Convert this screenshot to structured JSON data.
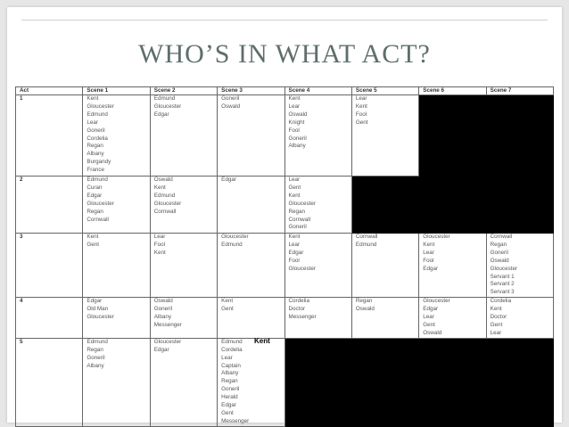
{
  "slide": {
    "title": "WHO’S IN WHAT ACT?"
  },
  "table": {
    "headers": [
      "Act",
      "Scene 1",
      "Scene 2",
      "Scene 3",
      "Scene 4",
      "Scene 5",
      "Scene 6",
      "Scene 7"
    ],
    "rows": [
      {
        "act": "1",
        "scenes": [
          [
            "Kent",
            "Gloucester",
            "Edmund",
            "Lear",
            "Goneril",
            "Cordelia",
            "Regan",
            "Albany",
            "Burgandy",
            "France"
          ],
          [
            "Edmund",
            "Gloucester",
            "Edgar"
          ],
          [
            "Goneril",
            "Oswald"
          ],
          [
            "Kent",
            "Lear",
            "Oswald",
            "Knight",
            "Fool",
            "Goneril",
            "Albany"
          ],
          [
            "Lear",
            "Kent",
            "Fool",
            "Gent"
          ],
          null,
          null
        ]
      },
      {
        "act": "2",
        "scenes": [
          [
            "Edmund",
            "Curan",
            "Edgar",
            "Gloucester",
            "Regan",
            "Cornwall"
          ],
          [
            "Oswald",
            "Kent",
            "Edmund",
            "Gloucester",
            "Cornwall"
          ],
          [
            "Edgar"
          ],
          [
            "Lear",
            "Gent",
            "Kent",
            "Gloucester",
            "Regan",
            "Cornwall",
            "Goneril"
          ],
          null,
          null,
          null
        ]
      },
      {
        "act": "3",
        "scenes": [
          [
            "Kent",
            "Gent"
          ],
          [
            "Lear",
            "Fool",
            "Kent"
          ],
          [
            "Gloucester",
            "Edmund"
          ],
          [
            "Kent",
            "Lear",
            "Edgar",
            "Fool",
            "Gloucester"
          ],
          [
            "Cornwall",
            "Edmund"
          ],
          [
            "Gloucester",
            "Kent",
            "Lear",
            "Fool",
            "Edgar"
          ],
          [
            "Cornwall",
            "Regan",
            "Goneril",
            "Oswald",
            "Gloucester",
            "Servant 1",
            "Servant 2",
            "Servant 3"
          ]
        ]
      },
      {
        "act": "4",
        "scenes": [
          [
            "Edgar",
            "Old Man",
            "Gloucester"
          ],
          [
            "Oswald",
            "Goneril",
            "Albany",
            "Messenger"
          ],
          [
            "Kent",
            "Gent"
          ],
          [
            "Cordelia",
            "Doctor",
            "Messenger"
          ],
          [
            "Regan",
            "Oswald"
          ],
          [
            "Gloucester",
            "Edgar",
            "Lear",
            "Gent",
            "Oswald"
          ],
          [
            "Cordelia",
            "Kent",
            "Doctor",
            "Gent",
            "Lear"
          ]
        ]
      },
      {
        "act": "5",
        "scenes": [
          [
            "Edmund",
            "Regan",
            "Goneril",
            "Albany"
          ],
          [
            "Gloucester",
            "Edgar"
          ],
          [
            "Edmund",
            "Cordelia",
            "Lear",
            "Captain",
            "Albany",
            "Regan",
            "Goneril",
            "Herald",
            "Edgar",
            "Gent",
            "Messenger"
          ],
          null,
          null,
          null,
          null
        ]
      }
    ],
    "annotation": "Kent",
    "blocked_color": "#000000"
  }
}
